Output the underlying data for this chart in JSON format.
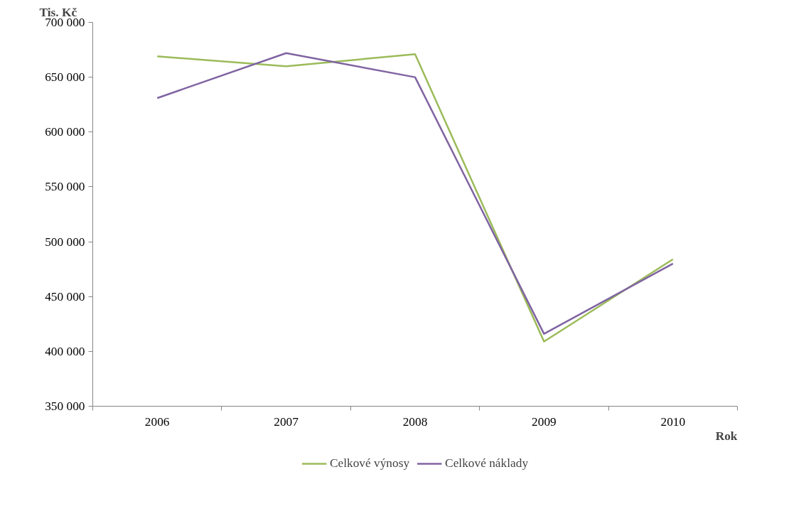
{
  "chart_data": {
    "type": "line",
    "ylabel": "Tis. Kč",
    "xlabel": "Rok",
    "categories": [
      "2006",
      "2007",
      "2008",
      "2009",
      "2010"
    ],
    "series": [
      {
        "name": "Celkové výnosy",
        "color": "#9bbb59",
        "values": [
          669000,
          660000,
          671000,
          409000,
          484000
        ]
      },
      {
        "name": "Celkové náklady",
        "color": "#8064a2",
        "values": [
          631000,
          672000,
          650000,
          416000,
          480000
        ]
      }
    ],
    "ylim": [
      350000,
      700000
    ],
    "yticks": [
      {
        "value": 350000,
        "label": "350 000"
      },
      {
        "value": 400000,
        "label": "400 000"
      },
      {
        "value": 450000,
        "label": "450 000"
      },
      {
        "value": 500000,
        "label": "500 000"
      },
      {
        "value": 550000,
        "label": "550 000"
      },
      {
        "value": 600000,
        "label": "600 000"
      },
      {
        "value": 650000,
        "label": "650 000"
      },
      {
        "value": 700000,
        "label": "700 000"
      }
    ],
    "grid": false,
    "legend": "bottom",
    "marker": "none",
    "line_style": "solid"
  }
}
